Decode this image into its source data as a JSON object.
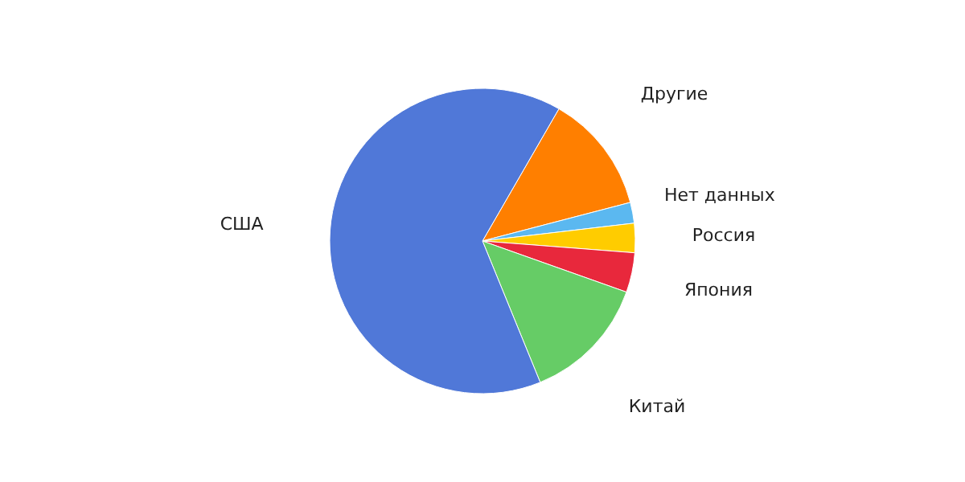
{
  "chart_data": {
    "type": "pie",
    "categories": [
      "Другие",
      "Нет данных",
      "Россия",
      "Япония",
      "Китай",
      "США"
    ],
    "values": [
      12.6,
      2.2,
      3.1,
      4.2,
      13.4,
      64.5
    ],
    "colors": [
      "#ff7f00",
      "#5bb8f0",
      "#ffcc00",
      "#e8283c",
      "#66cc66",
      "#5078d8"
    ]
  }
}
